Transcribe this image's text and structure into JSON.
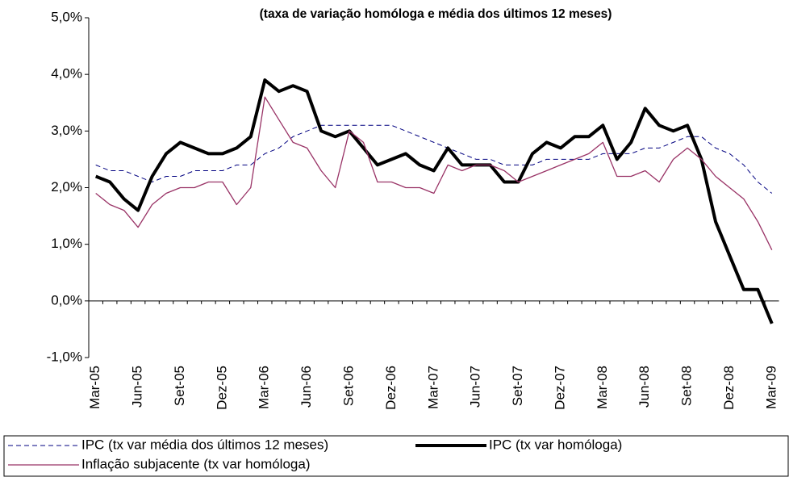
{
  "chart_data": {
    "type": "line",
    "title": "(taxa de variação homóloga e média dos últimos 12 meses)",
    "categories": [
      "Mar-05",
      null,
      null,
      "Jun-05",
      null,
      null,
      "Set-05",
      null,
      null,
      "Dez-05",
      null,
      null,
      "Mar-06",
      null,
      null,
      "Jun-06",
      null,
      null,
      "Set-06",
      null,
      null,
      "Dez-06",
      null,
      null,
      "Mar-07",
      null,
      null,
      "Jun-07",
      null,
      null,
      "Set-07",
      null,
      null,
      "Dez-07",
      null,
      null,
      "Mar-08",
      null,
      null,
      "Jun-08",
      null,
      null,
      "Set-08",
      null,
      null,
      "Dez-08",
      null,
      null,
      "Mar-09"
    ],
    "series": [
      {
        "name": "IPC (tx var média dos últimos 12 meses)",
        "color": "#000080",
        "dash": true,
        "width": 1,
        "values": [
          2.4,
          2.3,
          2.3,
          2.2,
          2.1,
          2.2,
          2.2,
          2.3,
          2.3,
          2.3,
          2.4,
          2.4,
          2.6,
          2.7,
          2.9,
          3.0,
          3.1,
          3.1,
          3.1,
          3.1,
          3.1,
          3.1,
          3.0,
          2.9,
          2.8,
          2.7,
          2.6,
          2.5,
          2.5,
          2.4,
          2.4,
          2.4,
          2.5,
          2.5,
          2.5,
          2.5,
          2.6,
          2.6,
          2.6,
          2.7,
          2.7,
          2.8,
          2.9,
          2.9,
          2.7,
          2.6,
          2.4,
          2.1,
          1.9
        ]
      },
      {
        "name": "IPC (tx var homóloga)",
        "color": "#000000",
        "dash": false,
        "width": 4,
        "values": [
          2.2,
          2.1,
          1.8,
          1.6,
          2.2,
          2.6,
          2.8,
          2.7,
          2.6,
          2.6,
          2.7,
          2.9,
          3.9,
          3.7,
          3.8,
          3.7,
          3.0,
          2.9,
          3.0,
          2.7,
          2.4,
          2.5,
          2.6,
          2.4,
          2.3,
          2.7,
          2.4,
          2.4,
          2.4,
          2.1,
          2.1,
          2.6,
          2.8,
          2.7,
          2.9,
          2.9,
          3.1,
          2.5,
          2.8,
          3.4,
          3.1,
          3.0,
          3.1,
          2.5,
          1.4,
          0.8,
          0.2,
          0.2,
          -0.4
        ]
      },
      {
        "name": "Inflação subjacente (tx var homóloga)",
        "color": "#993366",
        "dash": false,
        "width": 1.3,
        "values": [
          1.9,
          1.7,
          1.6,
          1.3,
          1.7,
          1.9,
          2.0,
          2.0,
          2.1,
          2.1,
          1.7,
          2.0,
          3.6,
          3.2,
          2.8,
          2.7,
          2.3,
          2.0,
          3.0,
          2.8,
          2.1,
          2.1,
          2.0,
          2.0,
          1.9,
          2.4,
          2.3,
          2.4,
          2.4,
          2.3,
          2.1,
          2.2,
          2.3,
          2.4,
          2.5,
          2.6,
          2.8,
          2.2,
          2.2,
          2.3,
          2.1,
          2.5,
          2.7,
          2.5,
          2.2,
          2.0,
          1.8,
          1.4,
          0.9
        ]
      }
    ],
    "ylim": [
      -1,
      5
    ],
    "yticks": [
      {
        "value": -1,
        "label": "-1,0%"
      },
      {
        "value": 0,
        "label": "0,0%"
      },
      {
        "value": 1,
        "label": "1,0%"
      },
      {
        "value": 2,
        "label": "2,0%"
      },
      {
        "value": 3,
        "label": "3,0%"
      },
      {
        "value": 4,
        "label": "4,0%"
      },
      {
        "value": 5,
        "label": "5,0%"
      }
    ],
    "grid": false
  }
}
